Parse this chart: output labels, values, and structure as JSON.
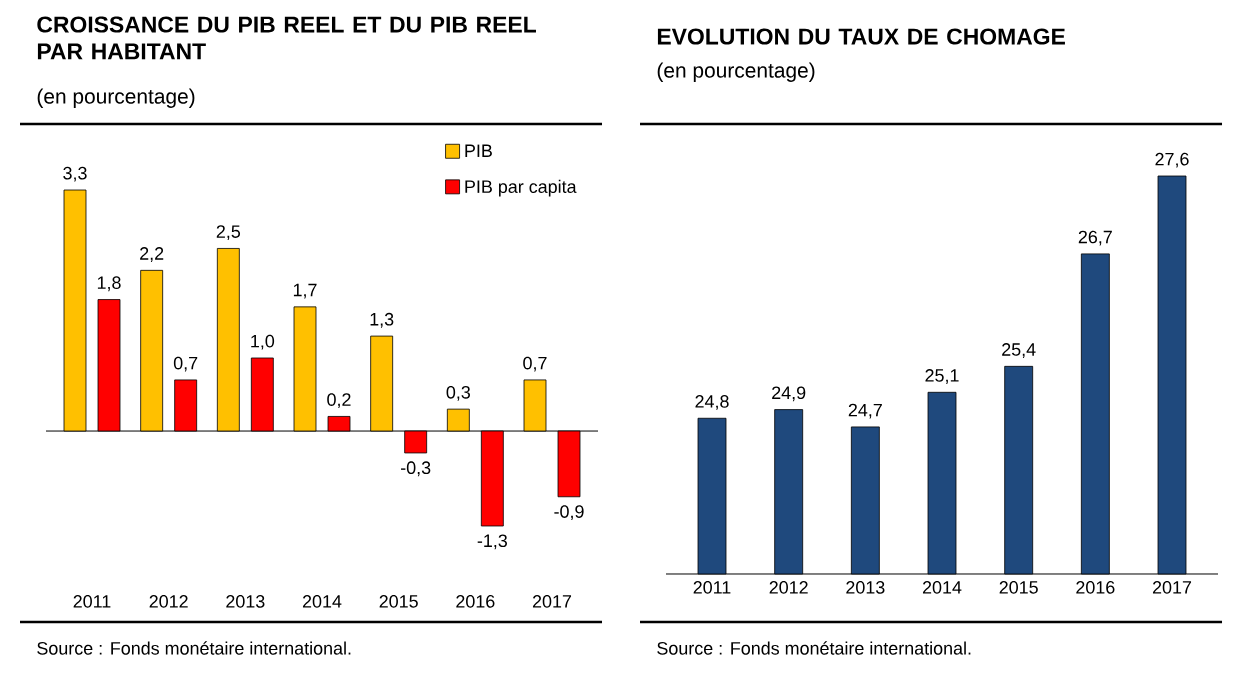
{
  "chart_data": [
    {
      "type": "bar",
      "title": "CROISSANCE DU PIB REEL ET DU PIB REEL PAR HABITANT",
      "subtitle": "(en pourcentage)",
      "categories": [
        "2011",
        "2012",
        "2013",
        "2014",
        "2015",
        "2016",
        "2017"
      ],
      "series": [
        {
          "name": "PIB",
          "color": "#ffc000",
          "values": [
            3.3,
            2.2,
            2.5,
            1.7,
            1.3,
            0.3,
            0.7
          ],
          "value_labels": [
            "3,3",
            "2,2",
            "2,5",
            "1,7",
            "1,3",
            "0,3",
            "0,7"
          ]
        },
        {
          "name": "PIB par capita",
          "color": "#ff0000",
          "values": [
            1.8,
            0.7,
            1.0,
            0.2,
            -0.3,
            -1.3,
            -0.9
          ],
          "value_labels": [
            "1,8",
            "0,7",
            "1,0",
            "0,2",
            "-0,3",
            "-1,3",
            "-0,9"
          ]
        }
      ],
      "ylim": [
        -1.3,
        3.3
      ],
      "tick_labels": "x",
      "legend": "top right",
      "annotations": [
        "Source : Fonds monétaire international."
      ]
    },
    {
      "type": "bar",
      "title": "EVOLUTION DU TAUX DE CHOMAGE",
      "subtitle": "(en pourcentage)",
      "categories": [
        "2011",
        "2012",
        "2013",
        "2014",
        "2015",
        "2016",
        "2017"
      ],
      "series": [
        {
          "color": "#1f497d",
          "values": [
            24.8,
            24.9,
            24.7,
            25.1,
            25.4,
            26.7,
            27.6
          ],
          "value_labels": [
            "24,8",
            "24,9",
            "24,7",
            "25,1",
            "25,4",
            "26,7",
            "27,6"
          ]
        }
      ],
      "ylim": [
        23.0,
        27.6
      ],
      "tick_labels": "x",
      "annotations": [
        "Source : Fonds monétaire international."
      ]
    }
  ]
}
